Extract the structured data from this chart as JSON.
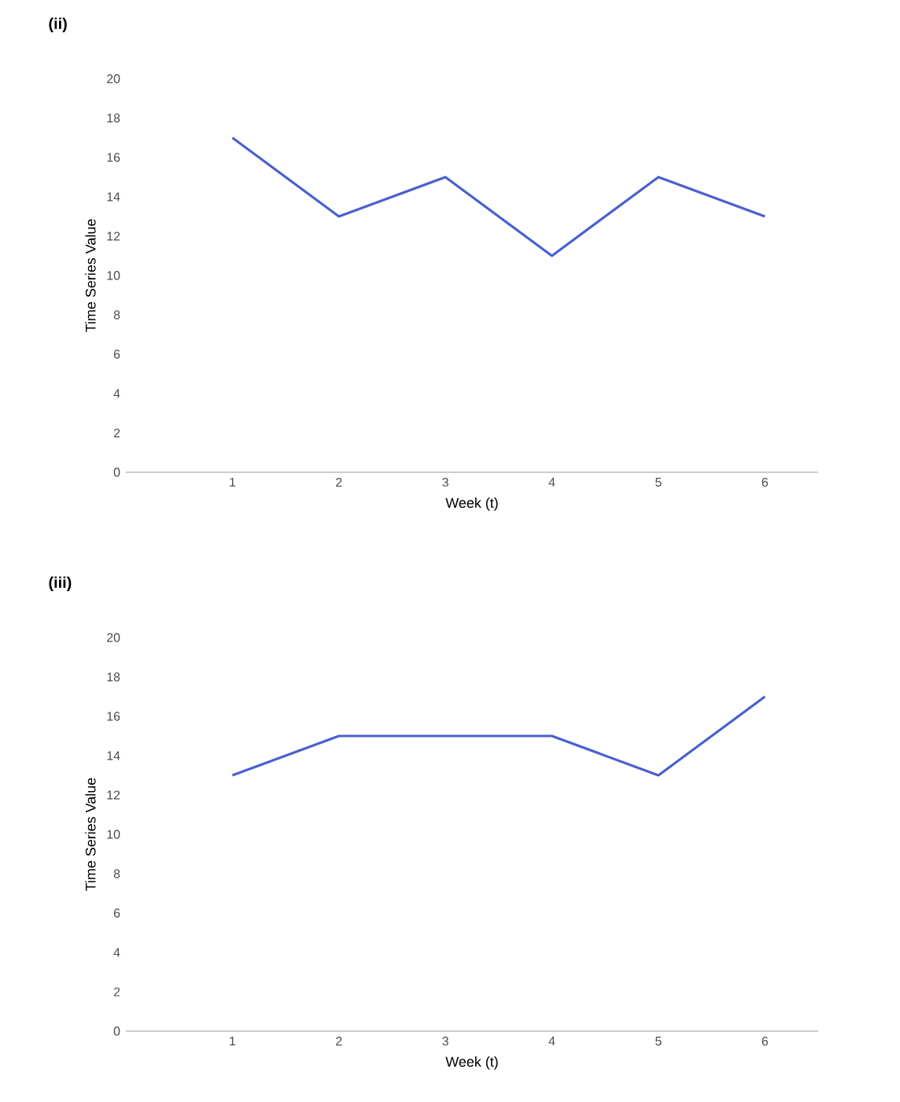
{
  "chart_data": [
    {
      "type": "line",
      "title": "(ii)",
      "xlabel": "Week (t)",
      "ylabel": "Time Series Value",
      "x": [
        1,
        2,
        3,
        4,
        5,
        6
      ],
      "values": [
        17,
        13,
        15,
        11,
        15,
        13
      ],
      "color": "#4a5fcf",
      "xlim": [
        0,
        6.5
      ],
      "ylim": [
        0,
        20
      ],
      "xticks": [
        1,
        2,
        3,
        4,
        5,
        6
      ],
      "yticks": [
        0,
        2,
        4,
        6,
        8,
        10,
        12,
        14,
        16,
        18,
        20
      ]
    },
    {
      "type": "line",
      "title": "(iii)",
      "xlabel": "Week (t)",
      "ylabel": "Time Series Value",
      "x": [
        1,
        2,
        3,
        4,
        5,
        6
      ],
      "values": [
        13,
        15,
        15,
        15,
        13,
        17
      ],
      "color": "#4a5fcf",
      "xlim": [
        0,
        6.5
      ],
      "ylim": [
        0,
        20
      ],
      "xticks": [
        1,
        2,
        3,
        4,
        5,
        6
      ],
      "yticks": [
        0,
        2,
        4,
        6,
        8,
        10,
        12,
        14,
        16,
        18,
        20
      ]
    }
  ]
}
